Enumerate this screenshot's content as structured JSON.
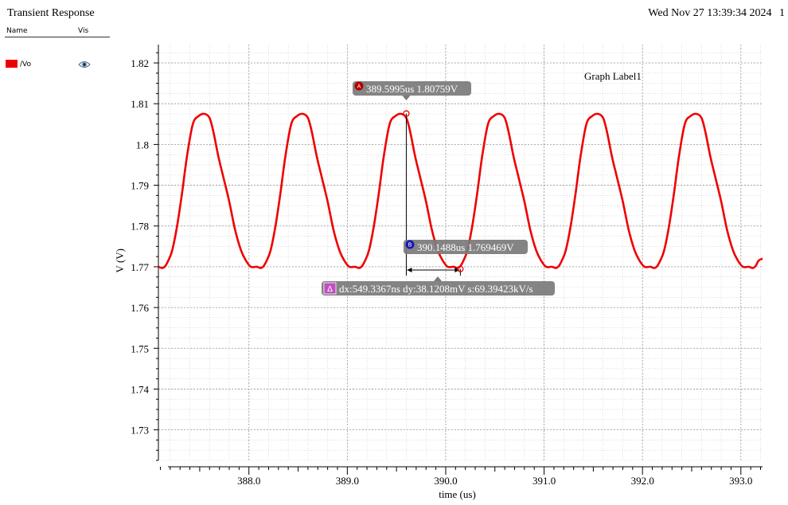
{
  "header": {
    "title": "Transient Response",
    "timestamp": "Wed Nov 27 13:39:34 2024",
    "page_number": "1"
  },
  "legend": {
    "name_header": "Name",
    "vis_header": "Vis",
    "traces": [
      {
        "label": "/Vo",
        "color": "#ee0000",
        "visible_icon": "eye-icon"
      }
    ]
  },
  "graph_label": "Graph Label1",
  "markers": {
    "A": {
      "id": "A",
      "label": "389.5995us 1.80759V",
      "x": 389.5995,
      "y": 1.80759,
      "badge_color": "#b00000"
    },
    "B": {
      "id": "B",
      "label": "390.1488us 1.769469V",
      "x": 390.1488,
      "y": 1.769469,
      "badge_color": "#1a1ab0"
    },
    "delta": {
      "id": "Δ",
      "label": "dx:549.3367ns dy:38.1208mV s:69.39423kV/s",
      "badge_color": "#c050c0"
    }
  },
  "chart_data": {
    "type": "line",
    "xlabel": "time (us)",
    "ylabel": "V (V)",
    "xlim": [
      387.08,
      393.22
    ],
    "ylim": [
      1.7225,
      1.8245
    ],
    "x_ticks": [
      388.0,
      389.0,
      390.0,
      391.0,
      392.0,
      393.0
    ],
    "x_tick_labels": [
      "388.0",
      "389.0",
      "390.0",
      "391.0",
      "392.0",
      "393.0"
    ],
    "y_ticks": [
      1.73,
      1.74,
      1.75,
      1.76,
      1.77,
      1.78,
      1.79,
      1.8,
      1.81,
      1.82
    ],
    "y_tick_labels": [
      "1.73",
      "1.74",
      "1.75",
      "1.76",
      "1.77",
      "1.78",
      "1.79",
      "1.8",
      "1.81",
      "1.82"
    ],
    "grid": true,
    "series": [
      {
        "name": "/Vo",
        "color": "#ee0000",
        "x": [
          387.08,
          387.12,
          387.15,
          387.18,
          387.22,
          387.27,
          387.32,
          387.37,
          387.43,
          387.49,
          387.55,
          387.6,
          387.64,
          387.69,
          387.74,
          387.8,
          387.86,
          387.92,
          387.97,
          388.02,
          388.08,
          388.12,
          388.15,
          388.18,
          388.22,
          388.27,
          388.32,
          388.37,
          388.43,
          388.49,
          388.55,
          388.6,
          388.64,
          388.69,
          388.74,
          388.8,
          388.86,
          388.92,
          388.97,
          389.02,
          389.08,
          389.12,
          389.15,
          389.18,
          389.22,
          389.27,
          389.32,
          389.37,
          389.43,
          389.49,
          389.55,
          389.6,
          389.64,
          389.69,
          389.74,
          389.8,
          389.86,
          389.92,
          389.97,
          390.02,
          390.08,
          390.12,
          390.15,
          390.18,
          390.22,
          390.27,
          390.32,
          390.37,
          390.43,
          390.49,
          390.55,
          390.6,
          390.64,
          390.69,
          390.74,
          390.8,
          390.86,
          390.92,
          390.97,
          391.02,
          391.08,
          391.12,
          391.15,
          391.18,
          391.22,
          391.27,
          391.32,
          391.37,
          391.43,
          391.49,
          391.55,
          391.6,
          391.64,
          391.69,
          391.74,
          391.8,
          391.86,
          391.92,
          391.97,
          392.02,
          392.08,
          392.12,
          392.15,
          392.18,
          392.22,
          392.27,
          392.32,
          392.37,
          392.43,
          392.49,
          392.55,
          392.6,
          392.64,
          392.69,
          392.74,
          392.8,
          392.86,
          392.92,
          392.97,
          393.02,
          393.08,
          393.12,
          393.15,
          393.18,
          393.22
        ],
        "y": [
          1.77,
          1.7697,
          1.7702,
          1.7715,
          1.774,
          1.78,
          1.788,
          1.797,
          1.805,
          1.807,
          1.8075,
          1.8065,
          1.803,
          1.797,
          1.792,
          1.786,
          1.779,
          1.774,
          1.7715,
          1.77,
          1.77,
          1.7697,
          1.7702,
          1.7715,
          1.774,
          1.78,
          1.788,
          1.797,
          1.805,
          1.807,
          1.8075,
          1.8065,
          1.803,
          1.797,
          1.792,
          1.786,
          1.779,
          1.774,
          1.7715,
          1.77,
          1.77,
          1.7697,
          1.7702,
          1.7715,
          1.774,
          1.78,
          1.788,
          1.797,
          1.805,
          1.807,
          1.8075,
          1.8065,
          1.803,
          1.797,
          1.792,
          1.786,
          1.779,
          1.774,
          1.7715,
          1.77,
          1.77,
          1.7697,
          1.7702,
          1.7715,
          1.774,
          1.78,
          1.788,
          1.797,
          1.805,
          1.807,
          1.8075,
          1.8065,
          1.803,
          1.797,
          1.792,
          1.786,
          1.779,
          1.774,
          1.7715,
          1.77,
          1.77,
          1.7697,
          1.7702,
          1.7715,
          1.774,
          1.78,
          1.788,
          1.797,
          1.805,
          1.807,
          1.8075,
          1.8065,
          1.803,
          1.797,
          1.792,
          1.786,
          1.779,
          1.774,
          1.7715,
          1.77,
          1.77,
          1.7697,
          1.7702,
          1.7715,
          1.774,
          1.78,
          1.788,
          1.797,
          1.805,
          1.807,
          1.8075,
          1.8065,
          1.803,
          1.797,
          1.792,
          1.786,
          1.779,
          1.774,
          1.7715,
          1.77,
          1.77,
          1.7697,
          1.7702,
          1.7715,
          1.772
        ]
      }
    ]
  }
}
